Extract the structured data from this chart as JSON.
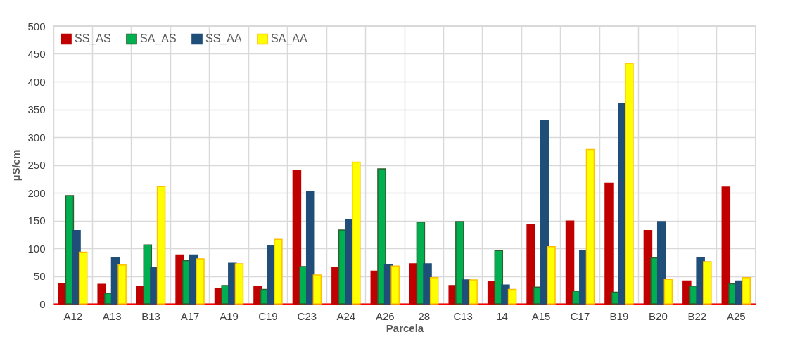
{
  "chart_data": {
    "type": "bar",
    "xlabel": "Parcela",
    "ylabel": "µS/cm",
    "categories": [
      "A12",
      "A13",
      "B13",
      "A17",
      "A19",
      "C19",
      "C23",
      "A24",
      "A26",
      "28",
      "C13",
      "14",
      "A15",
      "C17",
      "B19",
      "B20",
      "B22",
      "A25"
    ],
    "series": [
      {
        "name": "SS_AS",
        "color": "#c00000",
        "values": [
          37,
          35,
          31,
          88,
          27,
          31,
          240,
          65,
          59,
          72,
          33,
          40,
          143,
          149,
          217,
          132,
          41,
          210
        ]
      },
      {
        "name": "SA_AS",
        "color": "#00b050",
        "values": [
          195,
          19,
          106,
          78,
          33,
          26,
          67,
          133,
          243,
          147,
          148,
          96,
          30,
          23,
          21,
          83,
          32,
          36
        ]
      },
      {
        "name": "SS_AA",
        "color": "#1f4e79",
        "values": [
          132,
          83,
          65,
          88,
          73,
          105,
          202,
          152,
          70,
          72,
          43,
          34,
          330,
          96,
          361,
          148,
          84,
          41
        ]
      },
      {
        "name": "SA_AA",
        "color": "#ffff00",
        "values": [
          93,
          70,
          211,
          81,
          72,
          116,
          52,
          255,
          68,
          47,
          43,
          26,
          103,
          278,
          433,
          44,
          76,
          47
        ]
      }
    ],
    "ylim": [
      0,
      500
    ],
    "yticks": [
      0,
      50,
      100,
      150,
      200,
      250,
      300,
      350,
      400,
      450,
      500
    ],
    "grid": true,
    "legend": "top left"
  }
}
